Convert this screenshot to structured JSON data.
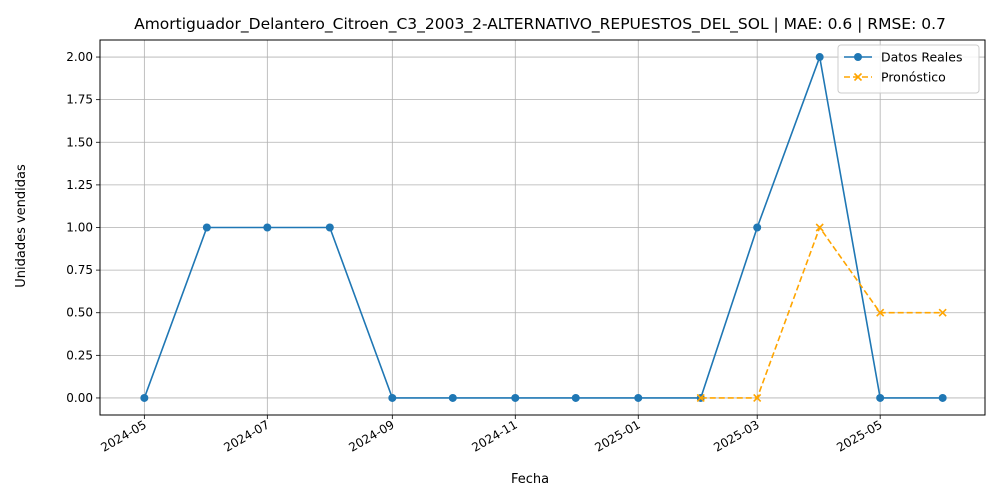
{
  "chart_data": {
    "type": "line",
    "title": "Amortiguador_Delantero_Citroen_C3_2003_2-ALTERNATIVO_REPUESTOS_DEL_SOL | MAE: 0.6 | RMSE: 0.7",
    "xlabel": "Fecha",
    "ylabel": "Unidades vendidas",
    "xlim": [
      "2024-04-09",
      "2025-06-22"
    ],
    "ylim": [
      -0.1,
      2.1
    ],
    "grid": true,
    "legend_position": "top-right",
    "x_ticks": [
      "2024-05",
      "2024-07",
      "2024-09",
      "2024-11",
      "2025-01",
      "2025-03",
      "2025-05"
    ],
    "x_tick_dates": [
      "2024-05-01",
      "2024-07-01",
      "2024-09-01",
      "2024-11-01",
      "2025-01-01",
      "2025-03-01",
      "2025-05-01"
    ],
    "y_ticks": [
      "0.00",
      "0.25",
      "0.50",
      "0.75",
      "1.00",
      "1.25",
      "1.50",
      "1.75",
      "2.00"
    ],
    "y_tick_values": [
      0,
      0.25,
      0.5,
      0.75,
      1.0,
      1.25,
      1.5,
      1.75,
      2.0
    ],
    "series": [
      {
        "name": "Datos Reales",
        "color": "#1f77b4",
        "line_style": "solid",
        "marker": "circle",
        "x": [
          "2024-05-01",
          "2024-06-01",
          "2024-07-01",
          "2024-08-01",
          "2024-09-01",
          "2024-10-01",
          "2024-11-01",
          "2024-12-01",
          "2025-01-01",
          "2025-02-01",
          "2025-03-01",
          "2025-04-01",
          "2025-05-01",
          "2025-06-01"
        ],
        "y": [
          0,
          1,
          1,
          1,
          0,
          0,
          0,
          0,
          0,
          0,
          1,
          2,
          0,
          0
        ]
      },
      {
        "name": "Pronóstico",
        "color": "#ffa500",
        "line_style": "dashed",
        "marker": "x",
        "x": [
          "2025-02-01",
          "2025-03-01",
          "2025-04-01",
          "2025-05-01",
          "2025-06-01"
        ],
        "y": [
          0,
          0,
          1,
          0.5,
          0.5
        ]
      }
    ]
  }
}
